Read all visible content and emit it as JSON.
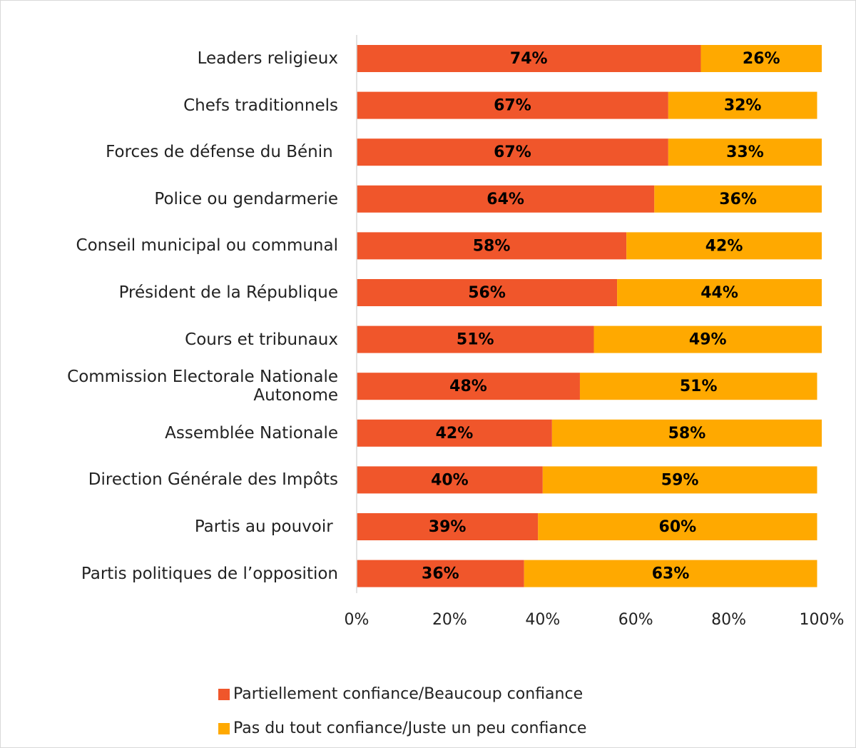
{
  "chart_data": {
    "type": "stacked_barh",
    "categories": [
      "Leaders religieux",
      "Chefs traditionnels",
      "Forces de défense du Bénin ",
      "Police ou gendarmerie",
      "Conseil municipal ou communal",
      "Président de la République",
      "Cours et tribunaux",
      "Commission Electorale Nationale Autonome",
      "Assemblée Nationale",
      "Direction Générale des Impôts",
      "Partis au pouvoir ",
      "Partis politiques de l’opposition"
    ],
    "series": [
      {
        "name": "Partiellement confiance/Beaucoup confiance",
        "color": "#f0562b",
        "values": [
          74,
          67,
          67,
          64,
          58,
          56,
          51,
          48,
          42,
          40,
          39,
          36
        ],
        "value_labels": [
          "74%",
          "67%",
          "67%",
          "64%",
          "58%",
          "56%",
          "51%",
          "48%",
          "42%",
          "40%",
          "39%",
          "36%"
        ]
      },
      {
        "name": "Pas du tout confiance/Juste un peu confiance",
        "color": "#ffa900",
        "values": [
          26,
          32,
          33,
          36,
          42,
          44,
          49,
          51,
          58,
          59,
          60,
          63
        ],
        "value_labels": [
          "26%",
          "32%",
          "33%",
          "36%",
          "42%",
          "44%",
          "49%",
          "51%",
          "58%",
          "59%",
          "60%",
          "63%"
        ]
      }
    ],
    "xlim": [
      0,
      100
    ],
    "xticks": [
      {
        "value": 0,
        "label": "0%"
      },
      {
        "value": 20,
        "label": "20%"
      },
      {
        "value": 40,
        "label": "40%"
      },
      {
        "value": 60,
        "label": "60%"
      },
      {
        "value": 80,
        "label": "80%"
      },
      {
        "value": 100,
        "label": "100%"
      }
    ],
    "legend": "bottom"
  }
}
